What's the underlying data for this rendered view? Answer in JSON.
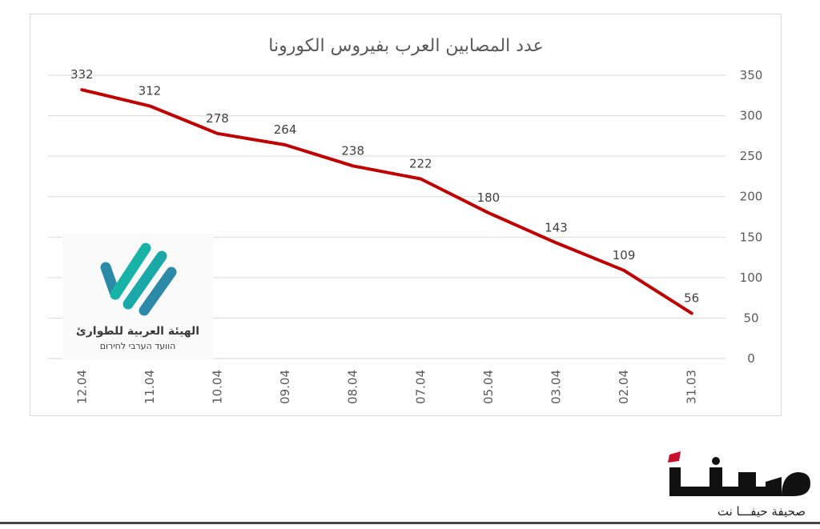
{
  "chart_data": {
    "type": "line",
    "title": "عدد المصابين العرب بفيروس الكورونا",
    "categories": [
      "12.04",
      "11.04",
      "10.04",
      "09.04",
      "08.04",
      "07.04",
      "05.04",
      "03.04",
      "02.04",
      "31.03"
    ],
    "values": [
      332,
      312,
      278,
      264,
      238,
      222,
      180,
      143,
      109,
      56
    ],
    "ylim": [
      0,
      350
    ],
    "yticks": [
      0,
      50,
      100,
      150,
      200,
      250,
      300,
      350
    ],
    "grid": true,
    "data_labels": true,
    "y_axis_side": "right",
    "line_color": "#c00000"
  },
  "logo": {
    "name": "الهيئة العربية للطوارئ",
    "subtitle": "הוועד הערבי לחירום",
    "colors": [
      "#17b3a6",
      "#2a8aa8"
    ]
  },
  "brand": {
    "tagline": "صحيفة حيفـــا نت",
    "accent_color": "#c8102e"
  }
}
